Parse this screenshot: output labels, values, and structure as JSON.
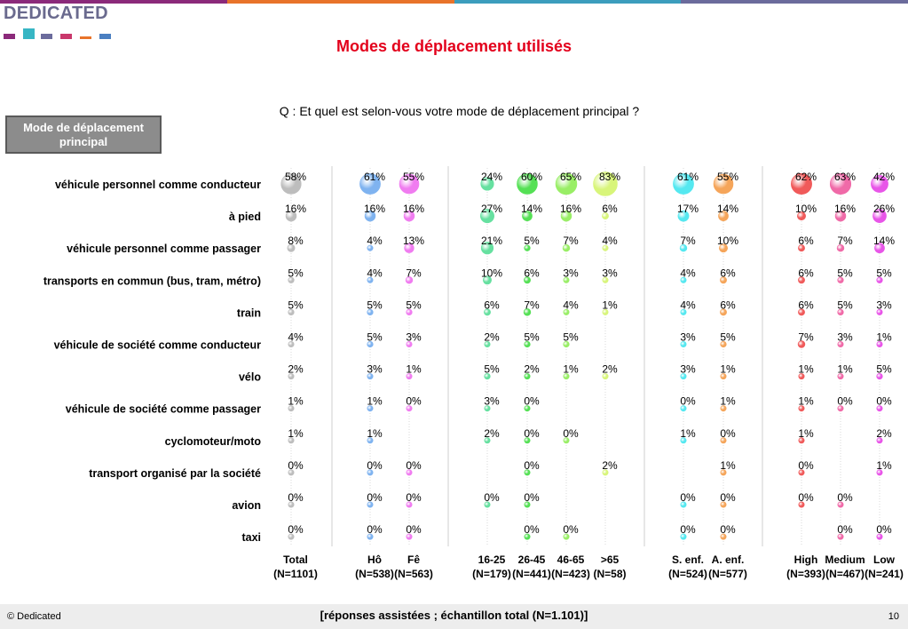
{
  "brand": {
    "logo_text": "DEDICATED",
    "stripe_colors": [
      "#8b2a7a",
      "#e8732a",
      "#3c9dbd",
      "#6b6b9c"
    ],
    "mark_colors": [
      "#8b2a7a",
      "#37b6c4",
      "#6b6b9c",
      "#c9376b",
      "#e8732a",
      "#4a7fc1"
    ]
  },
  "title": "Modes de déplacement utilisés",
  "question": "Q : Et quel est selon-vous votre mode de déplacement principal ?",
  "box_label": "Mode de déplacement principal",
  "footer": {
    "copyright": "© Dedicated",
    "note": "[réponses assistées ; échantillon total (N=1.101)]",
    "page": "10"
  },
  "chart_data": {
    "type": "bubble-matrix",
    "rows": [
      "véhicule personnel comme conducteur",
      "à pied",
      "véhicule personnel comme passager",
      "transports en commun (bus, tram, métro)",
      "train",
      "véhicule de société comme conducteur",
      "vélo",
      "véhicule de société comme passager",
      "cyclomoteur/moto",
      "transport organisé par la société",
      "avion",
      "taxi"
    ],
    "columns": [
      {
        "label": "Total",
        "n": "(N=1101)",
        "color": "#bdbdbd"
      },
      {
        "label": "Hô",
        "n": "(N=538)",
        "color": "#7fb3f0"
      },
      {
        "label": "Fê",
        "n": "(N=563)",
        "color": "#f07cf0"
      },
      {
        "label": "16-25",
        "n": "(N=179)",
        "color": "#66e0a0"
      },
      {
        "label": "26-45",
        "n": "(N=441)",
        "color": "#55e055"
      },
      {
        "label": "46-65",
        "n": "(N=423)",
        "color": "#99ee66"
      },
      {
        "label": ">65",
        "n": "(N=58)",
        "color": "#d8f57a"
      },
      {
        "label": "S. enf.",
        "n": "(N=524)",
        "color": "#55e8f0"
      },
      {
        "label": "A. enf.",
        "n": "(N=577)",
        "color": "#f5a55a"
      },
      {
        "label": "High",
        "n": "(N=393)",
        "color": "#f05a5a"
      },
      {
        "label": "Medium",
        "n": "(N=467)",
        "color": "#f06aa8"
      },
      {
        "label": "Low",
        "n": "(N=241)",
        "color": "#e855e8"
      }
    ],
    "unit": "%",
    "values": [
      [
        58,
        61,
        55,
        24,
        60,
        65,
        83,
        61,
        55,
        62,
        63,
        42
      ],
      [
        16,
        16,
        16,
        27,
        14,
        16,
        6,
        17,
        14,
        10,
        16,
        26
      ],
      [
        8,
        4,
        13,
        21,
        5,
        7,
        4,
        7,
        10,
        6,
        7,
        14
      ],
      [
        5,
        4,
        7,
        10,
        6,
        3,
        3,
        4,
        6,
        6,
        5,
        5
      ],
      [
        5,
        5,
        5,
        6,
        7,
        4,
        1,
        4,
        6,
        6,
        5,
        3
      ],
      [
        4,
        5,
        3,
        2,
        5,
        5,
        null,
        3,
        5,
        7,
        3,
        1
      ],
      [
        2,
        3,
        1,
        5,
        2,
        1,
        2,
        3,
        1,
        1,
        1,
        5
      ],
      [
        1,
        1,
        0,
        3,
        0,
        null,
        null,
        0,
        1,
        1,
        0,
        0
      ],
      [
        1,
        1,
        null,
        2,
        0,
        0,
        null,
        1,
        0,
        1,
        null,
        2
      ],
      [
        0,
        0,
        0,
        null,
        0,
        null,
        2,
        null,
        1,
        0,
        null,
        1
      ],
      [
        0,
        0,
        0,
        0,
        0,
        null,
        null,
        0,
        0,
        0,
        0,
        null
      ],
      [
        0,
        0,
        0,
        null,
        0,
        0,
        null,
        0,
        0,
        null,
        0,
        0
      ]
    ]
  }
}
